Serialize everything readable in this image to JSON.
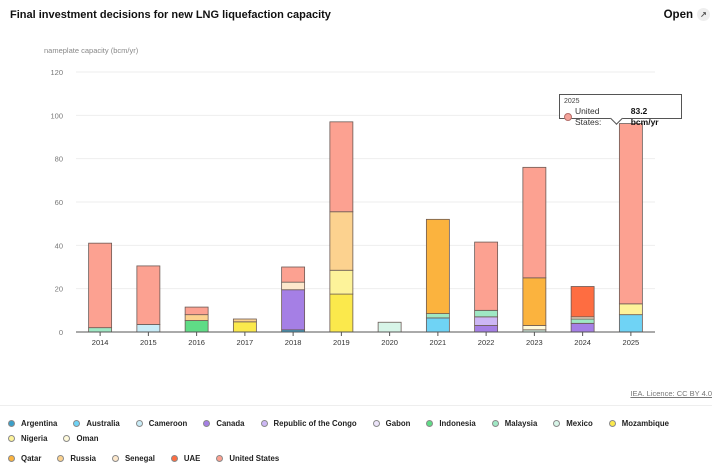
{
  "header": {
    "title": "Final investment decisions for new LNG liquefaction capacity",
    "open_label": "Open",
    "open_icon": "external-link-icon"
  },
  "credit": "IEA. Licence: CC BY 4.0",
  "tooltip": {
    "year": "2025",
    "series": "United States:",
    "value": "83.2 bcm/yr",
    "color": "#f4a39a"
  },
  "legend_colors": {
    "Argentina": "#3a9fc9",
    "Australia": "#6fd3f5",
    "Cameroon": "#c9ecf7",
    "Canada": "#a57fe5",
    "Republic of the Congo": "#cdb7f5",
    "Gabon": "#ece4fa",
    "Indonesia": "#5fdc86",
    "Malaysia": "#9fe8c4",
    "Mexico": "#d7f5e8",
    "Mozambique": "#fbe94c",
    "Nigeria": "#fdf39a",
    "Oman": "#fffadb",
    "Qatar": "#fbb33e",
    "Russia": "#fcd28f",
    "Senegal": "#fde8cc",
    "UAE": "#fe6d41",
    "United States": "#fca191"
  },
  "chart_data": {
    "type": "bar",
    "stacked": true,
    "title": "Final investment decisions for new LNG liquefaction capacity",
    "xlabel": "",
    "ylabel": "nameplate capacity (bcm/yr)",
    "ylim": [
      0,
      120
    ],
    "yticks": [
      0,
      20,
      40,
      60,
      80,
      100,
      120
    ],
    "grid": true,
    "legend_position": "bottom",
    "categories": [
      "2014",
      "2015",
      "2016",
      "2017",
      "2018",
      "2019",
      "2020",
      "2021",
      "2022",
      "2023",
      "2024",
      "2025"
    ],
    "series": [
      {
        "name": "Argentina",
        "values": [
          0,
          0,
          0,
          0,
          1,
          0,
          0,
          0,
          0,
          0,
          0,
          0
        ]
      },
      {
        "name": "Australia",
        "values": [
          0,
          0,
          0,
          0,
          0,
          0,
          0,
          6.5,
          0,
          0,
          0,
          8
        ]
      },
      {
        "name": "Cameroon",
        "values": [
          0,
          3.5,
          0,
          0,
          0,
          0,
          0,
          0,
          0,
          0,
          0,
          0
        ]
      },
      {
        "name": "Canada",
        "values": [
          0,
          0,
          0,
          0,
          18.5,
          0,
          0,
          0,
          3,
          0,
          4,
          0
        ]
      },
      {
        "name": "Republic of the Congo",
        "values": [
          0,
          0,
          0,
          0,
          0,
          0,
          0,
          0,
          4,
          0,
          0,
          0
        ]
      },
      {
        "name": "Gabon",
        "values": [
          0,
          0,
          0,
          0,
          0,
          0,
          0,
          0,
          0,
          0,
          0,
          0
        ]
      },
      {
        "name": "Indonesia",
        "values": [
          0,
          0,
          5.3,
          0,
          0,
          0,
          0,
          0,
          0,
          0,
          0,
          0
        ]
      },
      {
        "name": "Malaysia",
        "values": [
          2,
          0,
          0,
          0,
          0,
          0,
          0,
          2,
          3,
          0,
          2,
          0
        ]
      },
      {
        "name": "Mexico",
        "values": [
          0,
          0,
          0,
          0,
          0,
          0,
          4.5,
          0,
          0,
          1,
          0,
          0
        ]
      },
      {
        "name": "Mozambique",
        "values": [
          0,
          0,
          0,
          4.7,
          0,
          17.5,
          0,
          0,
          0,
          0,
          0,
          0
        ]
      },
      {
        "name": "Nigeria",
        "values": [
          0,
          0,
          0,
          0,
          0,
          11,
          0,
          0,
          0,
          0,
          0,
          5
        ]
      },
      {
        "name": "Oman",
        "values": [
          0,
          0,
          0,
          0,
          0,
          0,
          0,
          0,
          0,
          2,
          0,
          0
        ]
      },
      {
        "name": "Qatar",
        "values": [
          0,
          0,
          0,
          0,
          0,
          0,
          0,
          43.5,
          0,
          22,
          0,
          0
        ]
      },
      {
        "name": "Russia",
        "values": [
          0,
          0,
          2.7,
          1.3,
          0,
          27,
          0,
          0,
          0,
          0,
          0,
          0
        ]
      },
      {
        "name": "Senegal",
        "values": [
          0,
          0,
          0,
          0,
          3.5,
          0,
          0,
          0,
          0,
          0,
          1,
          0
        ]
      },
      {
        "name": "UAE",
        "values": [
          0,
          0,
          0,
          0,
          0,
          0,
          0,
          0,
          0,
          0,
          14,
          0
        ]
      },
      {
        "name": "United States",
        "values": [
          39,
          27,
          3.5,
          0,
          7,
          41.5,
          0,
          0,
          31.5,
          51,
          0,
          83.2
        ]
      }
    ],
    "highlight": {
      "category": "2025",
      "series": "United States"
    }
  }
}
